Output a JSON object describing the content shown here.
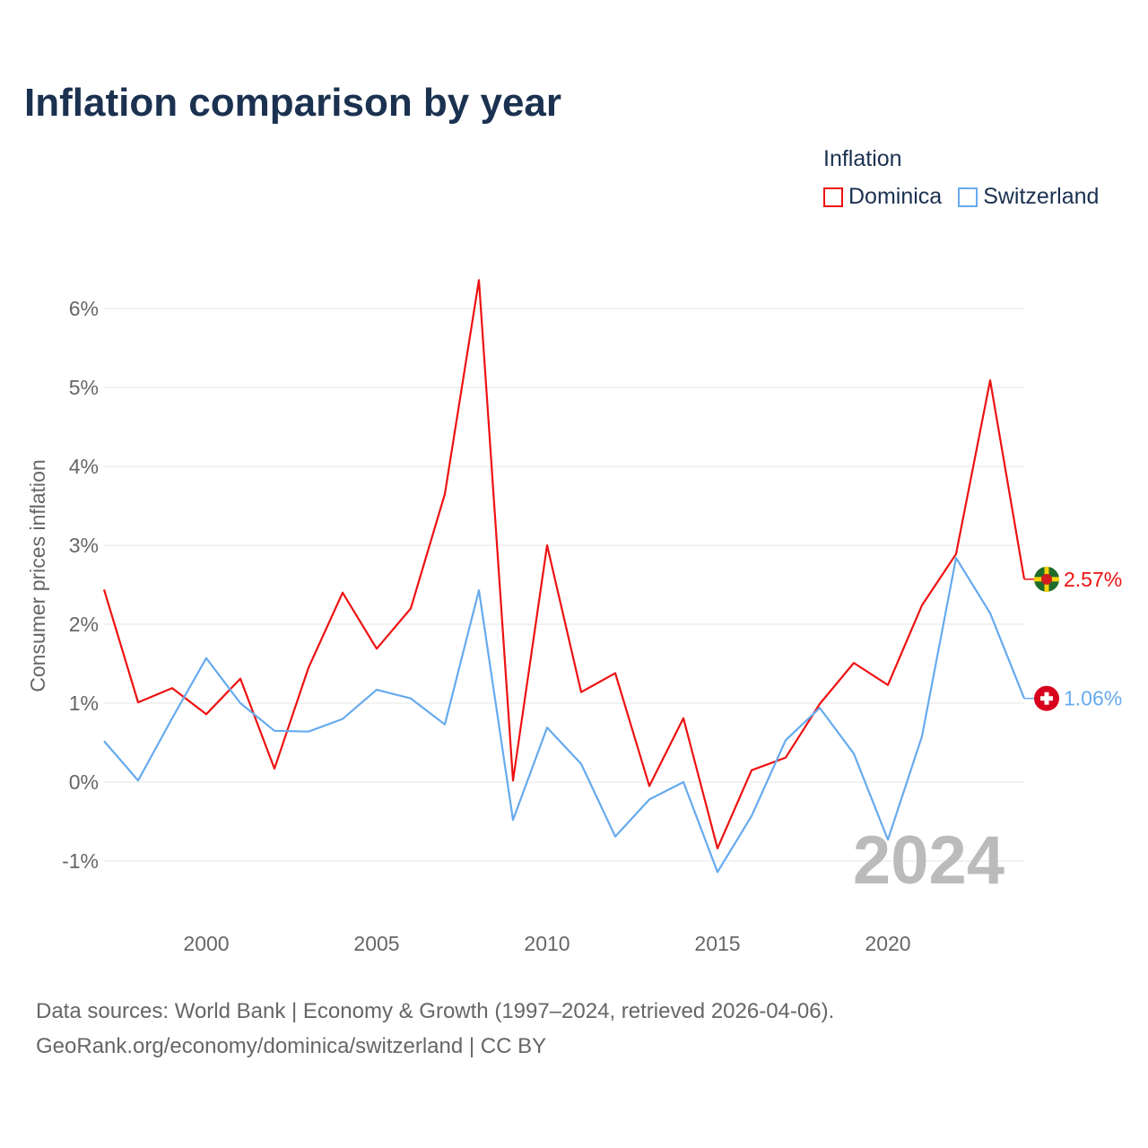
{
  "title": "Inflation comparison by year",
  "legend": {
    "title": "Inflation",
    "items": [
      {
        "label": "Dominica",
        "color": "#ee1111"
      },
      {
        "label": "Switzerland",
        "color": "#66aaee"
      }
    ]
  },
  "source": {
    "line1": "Data sources: World Bank | Economy & Growth (1997–2024, retrieved 2026-04-06).",
    "line2": "GeoRank.org/economy/dominica/switzerland | CC BY"
  },
  "chart_data": {
    "type": "line",
    "title": "Inflation comparison by year",
    "xlabel": "",
    "ylabel": "Consumer prices inflation",
    "xlim": [
      1997,
      2024
    ],
    "ylim": [
      -1.5,
      6.5
    ],
    "grid": true,
    "legend_position": "top-right",
    "watermark_year": "2024",
    "x_ticks": [
      2000,
      2005,
      2010,
      2015,
      2020
    ],
    "y_ticks": [
      {
        "v": -1,
        "label": "-1%"
      },
      {
        "v": 0,
        "label": "0%"
      },
      {
        "v": 1,
        "label": "1%"
      },
      {
        "v": 2,
        "label": "2%"
      },
      {
        "v": 3,
        "label": "3%"
      },
      {
        "v": 4,
        "label": "4%"
      },
      {
        "v": 5,
        "label": "5%"
      },
      {
        "v": 6,
        "label": "6%"
      }
    ],
    "x": [
      1997,
      1998,
      1999,
      2000,
      2001,
      2002,
      2003,
      2004,
      2005,
      2006,
      2007,
      2008,
      2009,
      2010,
      2011,
      2012,
      2013,
      2014,
      2015,
      2016,
      2017,
      2018,
      2019,
      2020,
      2021,
      2022,
      2023,
      2024
    ],
    "series": [
      {
        "name": "Dominica",
        "color": "#ee1111",
        "end_label": "2.57%",
        "values": [
          2.44,
          1.01,
          1.19,
          0.86,
          1.31,
          0.17,
          1.45,
          2.4,
          1.69,
          2.2,
          3.65,
          6.36,
          0.02,
          3.0,
          1.14,
          1.38,
          -0.05,
          0.81,
          -0.84,
          0.15,
          0.31,
          0.99,
          1.51,
          1.23,
          2.24,
          2.89,
          5.09,
          2.57
        ]
      },
      {
        "name": "Switzerland",
        "color": "#66aaee",
        "end_label": "1.06%",
        "values": [
          0.52,
          0.02,
          0.81,
          1.57,
          1.0,
          0.65,
          0.64,
          0.8,
          1.17,
          1.06,
          0.73,
          2.43,
          -0.48,
          0.69,
          0.23,
          -0.69,
          -0.22,
          0.0,
          -1.14,
          -0.43,
          0.53,
          0.94,
          0.36,
          -0.73,
          0.58,
          2.84,
          2.14,
          1.06
        ]
      }
    ]
  }
}
